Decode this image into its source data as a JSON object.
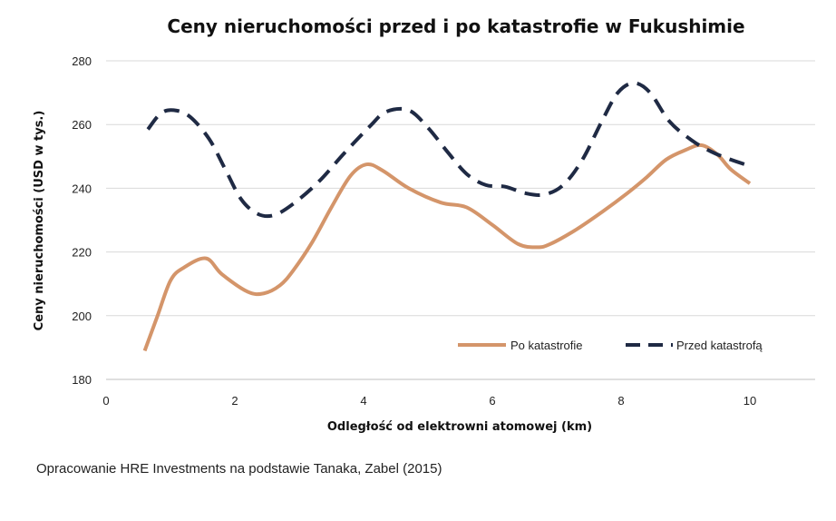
{
  "chart_data": {
    "type": "line",
    "title": "Ceny nieruchomości przed i po katastrofie w Fukushimie",
    "xlabel": "Odległość od elektrowni atomowej (km)",
    "ylabel": "Ceny nieruchomości (USD w tys.)",
    "xlim": [
      0,
      11
    ],
    "ylim": [
      180,
      280
    ],
    "x_ticks": [
      0,
      2,
      4,
      6,
      8,
      10
    ],
    "y_ticks": [
      180,
      200,
      220,
      240,
      260,
      280
    ],
    "x_tick_labels": [
      "0",
      "2",
      "4",
      "6",
      "8",
      "10"
    ],
    "y_tick_labels": [
      "180",
      "200",
      "220",
      "240",
      "260",
      "280"
    ],
    "grid": "horizontal",
    "legend_position": "bottom-right",
    "series": [
      {
        "name": "Po katastrofie",
        "color": "#d4956a",
        "style": "solid",
        "points": [
          [
            0.6,
            189
          ],
          [
            0.8,
            200
          ],
          [
            1.0,
            211
          ],
          [
            1.2,
            215
          ],
          [
            1.55,
            218
          ],
          [
            1.8,
            213
          ],
          [
            2.2,
            207.5
          ],
          [
            2.45,
            207
          ],
          [
            2.7,
            209.5
          ],
          [
            2.9,
            214
          ],
          [
            3.2,
            223
          ],
          [
            3.5,
            234
          ],
          [
            3.8,
            244
          ],
          [
            4.05,
            247.5
          ],
          [
            4.3,
            245.5
          ],
          [
            4.7,
            240
          ],
          [
            5.2,
            235.5
          ],
          [
            5.6,
            234
          ],
          [
            6.0,
            228.5
          ],
          [
            6.4,
            222.5
          ],
          [
            6.7,
            221.5
          ],
          [
            6.9,
            222.5
          ],
          [
            7.3,
            227
          ],
          [
            7.7,
            232.5
          ],
          [
            8.1,
            238.5
          ],
          [
            8.4,
            243.5
          ],
          [
            8.7,
            249
          ],
          [
            9.0,
            252
          ],
          [
            9.25,
            253.5
          ],
          [
            9.5,
            250.5
          ],
          [
            9.7,
            246
          ],
          [
            10.0,
            241.5
          ]
        ]
      },
      {
        "name": "Przed katastrofą",
        "color": "#1f2a44",
        "style": "dashed",
        "points": [
          [
            0.65,
            258.5
          ],
          [
            0.85,
            263.5
          ],
          [
            1.05,
            264.5
          ],
          [
            1.3,
            262.5
          ],
          [
            1.6,
            255.5
          ],
          [
            1.85,
            246
          ],
          [
            2.1,
            236.5
          ],
          [
            2.35,
            232
          ],
          [
            2.6,
            231.5
          ],
          [
            2.9,
            235
          ],
          [
            3.3,
            242
          ],
          [
            3.7,
            251
          ],
          [
            4.1,
            259.5
          ],
          [
            4.35,
            264
          ],
          [
            4.7,
            264.5
          ],
          [
            5.0,
            259
          ],
          [
            5.3,
            251.5
          ],
          [
            5.6,
            244.5
          ],
          [
            5.9,
            241
          ],
          [
            6.2,
            240.5
          ],
          [
            6.5,
            238.5
          ],
          [
            6.8,
            238
          ],
          [
            7.1,
            241
          ],
          [
            7.4,
            249
          ],
          [
            7.7,
            261
          ],
          [
            7.95,
            270
          ],
          [
            8.2,
            273
          ],
          [
            8.45,
            270
          ],
          [
            8.75,
            261
          ],
          [
            9.1,
            255
          ],
          [
            9.4,
            251.5
          ],
          [
            9.7,
            249
          ],
          [
            10.0,
            247
          ]
        ]
      }
    ]
  },
  "source": "Opracowanie HRE Investments na podstawie Tanaka, Zabel (2015)"
}
